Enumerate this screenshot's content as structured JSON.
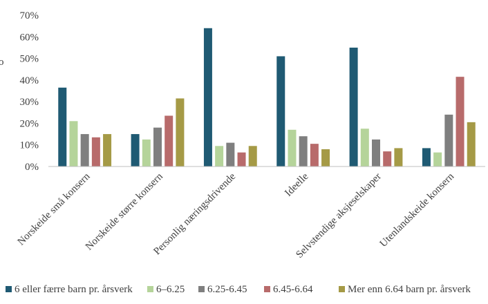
{
  "chart_data": {
    "type": "bar",
    "title": "",
    "xlabel": "",
    "ylabel": "",
    "ylabel_fragment": "o",
    "ylim": [
      0,
      70
    ],
    "y_ticks": [
      "0%",
      "10%",
      "20%",
      "30%",
      "40%",
      "50%",
      "60%",
      "70%"
    ],
    "categories": [
      "Norskeide små konsern",
      "Norskeide større konsern",
      "Personlig næringsdrivende",
      "Ideelle",
      "Selvstendige aksjeselskaper",
      "Utenlandskeide konsern"
    ],
    "series": [
      {
        "name": "6 eller færre barn pr. årsverk",
        "color": "#1f5a73",
        "values": [
          36.5,
          15,
          64,
          51,
          55,
          8.5
        ]
      },
      {
        "name": "6–6.25",
        "color": "#b5d49a",
        "values": [
          21,
          12.5,
          9.5,
          17,
          17.5,
          6.5
        ]
      },
      {
        "name": "6.25-6.45",
        "color": "#7f7f7f",
        "values": [
          15,
          18,
          11,
          14,
          12.5,
          24
        ]
      },
      {
        "name": "6.45-6.64",
        "color": "#b86b6b",
        "values": [
          13.5,
          23.5,
          6.5,
          10.5,
          7,
          41.5
        ]
      },
      {
        "name": "Mer enn 6.64 barn pr. årsverk",
        "color": "#a59a46",
        "values": [
          15,
          31.5,
          9.5,
          8,
          8.5,
          20.5
        ]
      }
    ],
    "legend_position": "bottom",
    "grid": false
  }
}
